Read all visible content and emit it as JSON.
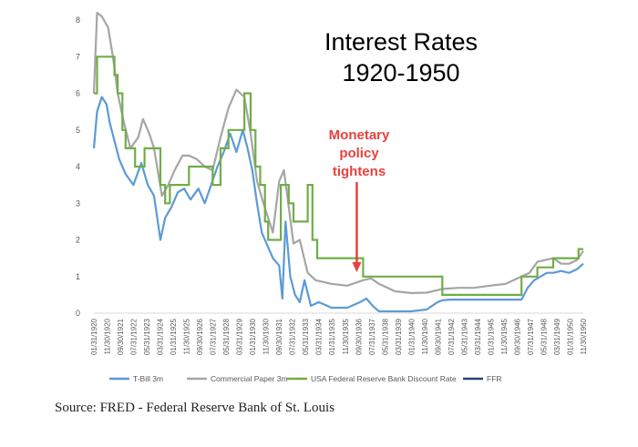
{
  "source": "Source: FRED - Federal Reserve Bank of St. Louis",
  "chart_data": {
    "type": "line",
    "title": [
      "Interest Rates",
      "1920-1950"
    ],
    "annotation": [
      "Monetary",
      "policy",
      "tightens"
    ],
    "xlabel": "",
    "ylabel": "",
    "ylim": [
      0,
      8
    ],
    "yticks": [
      "0",
      "1",
      "2",
      "3",
      "4",
      "5",
      "6",
      "7",
      "8"
    ],
    "grid": false,
    "legend_position": "bottom",
    "annotation_at_year": 1937.0,
    "xticks": [
      "01/31/1920",
      "11/30/1920",
      "09/30/1921",
      "07/31/1922",
      "05/31/1923",
      "03/31/1924",
      "01/31/1925",
      "11/30/1925",
      "09/30/1926",
      "07/31/1927",
      "05/31/1928",
      "03/31/1929",
      "01/31/1930",
      "11/30/1930",
      "09/30/1931",
      "07/31/1932",
      "05/31/1933",
      "03/31/1934",
      "01/31/1935",
      "11/30/1935",
      "09/30/1936",
      "07/31/1937",
      "05/31/1938",
      "03/31/1939",
      "01/31/1940",
      "11/30/1940",
      "09/30/1941",
      "07/31/1942",
      "05/31/1943",
      "03/31/1944",
      "01/31/1945",
      "11/30/1945",
      "09/30/1946",
      "07/31/1947",
      "05/31/1948",
      "03/31/1949",
      "01/31/1950",
      "11/30/1950"
    ],
    "series": [
      {
        "name": "T-Bill 3m",
        "color": "#5b9bd5",
        "x": [
          1920.0,
          1920.2,
          1920.5,
          1920.8,
          1921.0,
          1921.3,
          1921.6,
          1922.0,
          1922.5,
          1923.0,
          1923.4,
          1923.8,
          1924.2,
          1924.5,
          1924.9,
          1925.3,
          1925.7,
          1926.1,
          1926.6,
          1927.0,
          1927.4,
          1927.8,
          1928.2,
          1928.6,
          1929.0,
          1929.4,
          1929.7,
          1930.0,
          1930.3,
          1930.6,
          1931.0,
          1931.3,
          1931.7,
          1931.9,
          1932.1,
          1932.4,
          1932.7,
          1933.0,
          1933.3,
          1933.7,
          1934.2,
          1935.0,
          1936.0,
          1936.8,
          1937.2,
          1937.6,
          1938.0,
          1939.0,
          1940.0,
          1941.0,
          1941.7,
          1942.0,
          1942.5,
          1943.0,
          1944.0,
          1945.0,
          1946.0,
          1947.0,
          1947.4,
          1947.8,
          1948.2,
          1948.6,
          1949.0,
          1949.5,
          1950.0,
          1950.5,
          1950.9
        ],
        "values": [
          4.5,
          5.5,
          5.9,
          5.7,
          5.2,
          4.7,
          4.2,
          3.8,
          3.5,
          4.1,
          3.5,
          3.2,
          2.0,
          2.6,
          2.9,
          3.3,
          3.4,
          3.1,
          3.4,
          3.0,
          3.5,
          4.0,
          4.4,
          4.9,
          4.4,
          5.0,
          4.5,
          3.9,
          3.0,
          2.2,
          1.8,
          1.5,
          1.3,
          0.4,
          2.5,
          1.0,
          0.5,
          0.3,
          0.9,
          0.2,
          0.3,
          0.15,
          0.15,
          0.3,
          0.4,
          0.2,
          0.05,
          0.05,
          0.05,
          0.1,
          0.3,
          0.35,
          0.37,
          0.37,
          0.37,
          0.37,
          0.37,
          0.37,
          0.7,
          0.9,
          1.0,
          1.1,
          1.1,
          1.15,
          1.1,
          1.2,
          1.35
        ]
      },
      {
        "name": "Commercial Paper 3m",
        "color": "#a5a5a5",
        "x": [
          1920.0,
          1920.2,
          1920.5,
          1920.9,
          1921.2,
          1921.5,
          1921.9,
          1922.3,
          1922.8,
          1923.1,
          1923.5,
          1923.8,
          1924.3,
          1924.7,
          1925.1,
          1925.6,
          1926.0,
          1926.5,
          1927.0,
          1927.5,
          1928.0,
          1928.5,
          1929.0,
          1929.5,
          1929.9,
          1930.3,
          1930.7,
          1931.0,
          1931.3,
          1931.7,
          1932.0,
          1932.3,
          1932.6,
          1933.0,
          1933.5,
          1934.0,
          1935.0,
          1936.0,
          1937.0,
          1937.5,
          1938.0,
          1939.0,
          1940.0,
          1941.0,
          1942.0,
          1943.0,
          1944.0,
          1945.0,
          1946.0,
          1947.0,
          1947.5,
          1948.0,
          1948.5,
          1949.0,
          1949.5,
          1950.0,
          1950.5,
          1950.9
        ],
        "values": [
          6.0,
          8.2,
          8.1,
          7.8,
          7.0,
          6.0,
          5.2,
          4.5,
          4.8,
          5.3,
          4.9,
          4.5,
          3.2,
          3.5,
          3.9,
          4.3,
          4.3,
          4.2,
          4.0,
          3.9,
          4.8,
          5.6,
          6.1,
          5.9,
          4.9,
          3.6,
          3.0,
          2.6,
          2.2,
          3.6,
          3.9,
          2.9,
          1.9,
          2.0,
          1.1,
          0.9,
          0.8,
          0.75,
          0.9,
          0.95,
          0.8,
          0.6,
          0.55,
          0.56,
          0.66,
          0.69,
          0.69,
          0.75,
          0.8,
          1.0,
          1.1,
          1.4,
          1.45,
          1.5,
          1.35,
          1.35,
          1.45,
          1.7
        ]
      },
      {
        "name": "USA Federal Reserve Bank Discount Rate",
        "color": "#70ad47",
        "x": [
          1920.0,
          1920.2,
          1921.3,
          1921.5,
          1921.8,
          1922.0,
          1922.6,
          1923.2,
          1924.2,
          1924.5,
          1924.8,
          1925.0,
          1926.0,
          1926.4,
          1927.5,
          1928.0,
          1928.5,
          1929.5,
          1929.9,
          1930.2,
          1930.5,
          1930.8,
          1931.0,
          1931.8,
          1932.0,
          1932.3,
          1932.6,
          1933.0,
          1933.5,
          1933.8,
          1934.1,
          1935.0,
          1936.0,
          1937.0,
          1938.0,
          1939.0,
          1940.0,
          1941.0,
          1942.0,
          1943.0,
          1944.0,
          1945.0,
          1946.0,
          1947.0,
          1948.0,
          1949.0,
          1950.0,
          1950.6,
          1950.9
        ],
        "values": [
          6.0,
          7.0,
          6.5,
          6.0,
          5.0,
          4.5,
          4.0,
          4.5,
          3.5,
          3.0,
          3.5,
          3.5,
          4.0,
          4.0,
          3.5,
          4.5,
          5.0,
          6.0,
          5.0,
          4.0,
          3.5,
          2.5,
          2.0,
          3.5,
          3.5,
          3.0,
          2.5,
          2.5,
          3.5,
          2.0,
          1.5,
          1.5,
          1.5,
          1.0,
          1.0,
          1.0,
          1.0,
          1.0,
          0.5,
          0.5,
          0.5,
          0.5,
          0.5,
          1.0,
          1.25,
          1.5,
          1.5,
          1.75,
          1.75
        ]
      },
      {
        "name": "FFR",
        "color": "#264478",
        "x": [],
        "values": []
      }
    ]
  }
}
